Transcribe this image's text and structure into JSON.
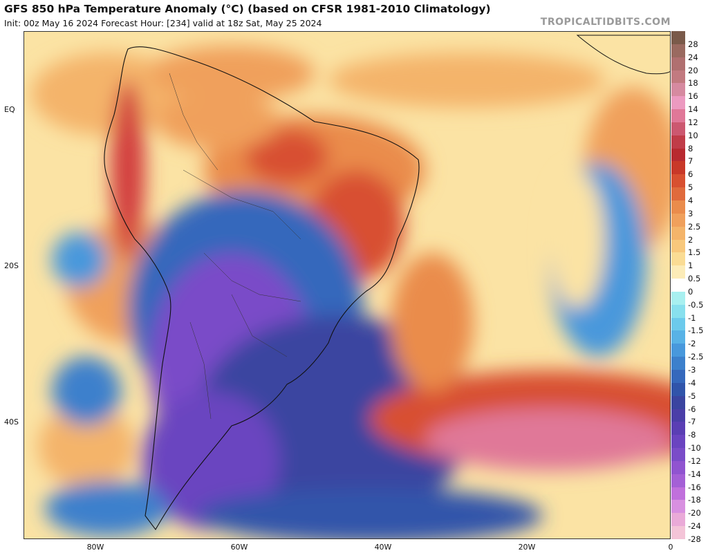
{
  "header": {
    "title": "GFS 850 hPa Temperature Anomaly (°C) (based on CFSR 1981-2010 Climatology)",
    "subtitle": "Init: 00z May 16 2024   Forecast Hour: [234]   valid at 18z Sat, May 25 2024",
    "brand": "TROPICALTIDBITS.COM"
  },
  "axes": {
    "lat_labels": [
      "EQ",
      "20S",
      "40S"
    ],
    "lon_labels": [
      "80W",
      "60W",
      "40W",
      "20W",
      "0"
    ]
  },
  "colorbar": {
    "labels": [
      "28",
      "24",
      "20",
      "18",
      "16",
      "14",
      "12",
      "10",
      "8",
      "7",
      "6",
      "5",
      "4",
      "3",
      "2.5",
      "2",
      "1.5",
      "1",
      "0.5",
      "0",
      "-0.5",
      "-1",
      "-1.5",
      "-2",
      "-2.5",
      "-3",
      "-4",
      "-5",
      "-6",
      "-7",
      "-8",
      "-10",
      "-12",
      "-14",
      "-16",
      "-18",
      "-20",
      "-24",
      "-28"
    ],
    "colors": [
      "#7a5a4a",
      "#9a6a60",
      "#b07070",
      "#c27a80",
      "#d68aa0",
      "#ec9ac0",
      "#e07898",
      "#cc5870",
      "#c03c48",
      "#b82a30",
      "#c83828",
      "#d85030",
      "#e06a3c",
      "#ea8c4c",
      "#f0a05c",
      "#f4b46a",
      "#f8c87c",
      "#fadc94",
      "#fcecb8",
      "#ffffff",
      "#a8f0f0",
      "#88e0ee",
      "#6ccaec",
      "#58b2e6",
      "#4898dc",
      "#3c80cc",
      "#3568bc",
      "#3054aa",
      "#3a44a0",
      "#4a3ea8",
      "#5a3eb4",
      "#6a44c0",
      "#7a4cc8",
      "#9054d0",
      "#a460d6",
      "#c070dc",
      "#d890e0",
      "#eaaad8",
      "#f4c4d8"
    ]
  },
  "map": {
    "description_colors": {
      "ocean_warm": "#fbe3a4",
      "warm_anomaly": "#f08a4b",
      "hot_anomaly": "#d23c3c",
      "cold_anomaly": "#3a5bb5",
      "very_cold": "#7a4cc8",
      "extreme_warm": "#ec9ac0"
    }
  }
}
